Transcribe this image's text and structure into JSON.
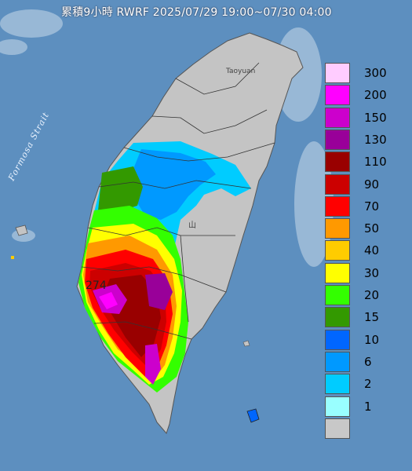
{
  "title": "累積9小時 RWRF 2025/07/29 19:00~07/30 04:00",
  "strait_label": "Formosa Strait",
  "place_labels": {
    "taoyuan": "Taoyuan",
    "mountain": "山"
  },
  "peak_value": "274",
  "legend": [
    {
      "label": "300",
      "color": "#ffccff"
    },
    {
      "label": "200",
      "color": "#ff00ff"
    },
    {
      "label": "150",
      "color": "#cc00cc"
    },
    {
      "label": "130",
      "color": "#990099"
    },
    {
      "label": "110",
      "color": "#990000"
    },
    {
      "label": "90",
      "color": "#cc0000"
    },
    {
      "label": "70",
      "color": "#ff0000"
    },
    {
      "label": "50",
      "color": "#ff9900"
    },
    {
      "label": "40",
      "color": "#ffcc00"
    },
    {
      "label": "30",
      "color": "#ffff00"
    },
    {
      "label": "20",
      "color": "#33ff00"
    },
    {
      "label": "15",
      "color": "#339900"
    },
    {
      "label": "10",
      "color": "#0066ff"
    },
    {
      "label": "6",
      "color": "#0099ff"
    },
    {
      "label": "2",
      "color": "#00ccff"
    },
    {
      "label": "1",
      "color": "#99ffff"
    },
    {
      "label": "",
      "color": "#c8c8c8"
    }
  ]
}
